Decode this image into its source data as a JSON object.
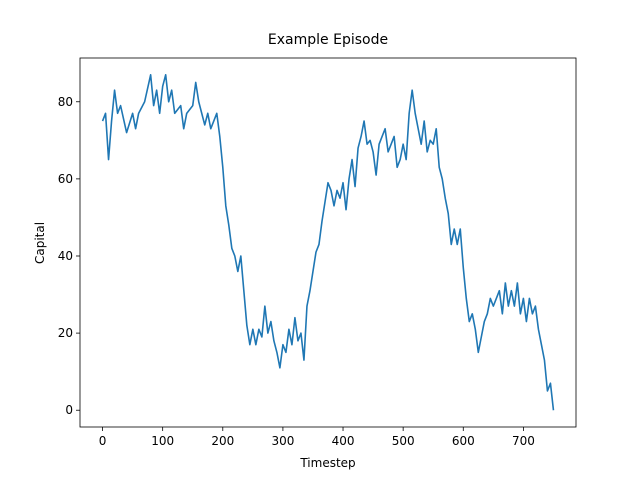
{
  "chart_data": {
    "type": "line",
    "title": "Example Episode",
    "x_label": "Timestep",
    "y_label": "Capital",
    "x": [
      0,
      5,
      10,
      15,
      20,
      25,
      30,
      40,
      50,
      55,
      60,
      70,
      80,
      85,
      90,
      95,
      100,
      105,
      110,
      115,
      120,
      130,
      135,
      140,
      150,
      155,
      160,
      170,
      175,
      180,
      190,
      195,
      200,
      205,
      210,
      215,
      220,
      225,
      230,
      235,
      240,
      245,
      250,
      255,
      260,
      265,
      270,
      275,
      280,
      285,
      290,
      295,
      300,
      305,
      310,
      315,
      320,
      325,
      330,
      335,
      340,
      345,
      350,
      355,
      360,
      365,
      370,
      375,
      380,
      385,
      390,
      395,
      400,
      405,
      410,
      415,
      420,
      425,
      430,
      435,
      440,
      445,
      450,
      455,
      460,
      465,
      470,
      475,
      480,
      485,
      490,
      495,
      500,
      505,
      510,
      515,
      520,
      525,
      530,
      535,
      540,
      545,
      550,
      555,
      560,
      565,
      570,
      575,
      580,
      585,
      590,
      595,
      600,
      605,
      610,
      615,
      620,
      625,
      630,
      635,
      640,
      645,
      650,
      655,
      660,
      665,
      670,
      675,
      680,
      685,
      690,
      695,
      700,
      705,
      710,
      715,
      720,
      725,
      730,
      735,
      740,
      745,
      750
    ],
    "series": [
      {
        "name": "Capital",
        "color": "#1f77b4",
        "values": [
          75,
          77,
          65,
          75,
          83,
          77,
          79,
          72,
          77,
          73,
          77,
          80,
          87,
          79,
          83,
          77,
          84,
          87,
          80,
          83,
          77,
          79,
          73,
          77,
          79,
          85,
          80,
          74,
          77,
          73,
          77,
          71,
          63,
          53,
          48,
          42,
          40,
          36,
          40,
          31,
          22,
          17,
          21,
          17,
          21,
          19,
          27,
          20,
          23,
          18,
          15,
          11,
          17,
          15,
          21,
          17,
          24,
          18,
          20,
          13,
          27,
          31,
          36,
          41,
          43,
          49,
          54,
          59,
          57,
          53,
          57,
          55,
          59,
          52,
          60,
          65,
          58,
          68,
          71,
          75,
          69,
          70,
          67,
          61,
          69,
          71,
          73,
          67,
          69,
          71,
          63,
          65,
          69,
          65,
          77,
          83,
          77,
          73,
          69,
          75,
          67,
          70,
          69,
          73,
          63,
          60,
          55,
          51,
          43,
          47,
          43,
          47,
          37,
          29,
          23,
          25,
          21,
          15,
          19,
          23,
          25,
          29,
          27,
          29,
          31,
          25,
          33,
          27,
          31,
          27,
          33,
          25,
          29,
          23,
          29,
          25,
          27,
          21,
          17,
          13,
          5,
          7,
          0
        ]
      }
    ],
    "xlim": [
      -37.5,
      787.5
    ],
    "xticks": [
      0,
      100,
      200,
      300,
      400,
      500,
      600,
      700
    ],
    "ylim": [
      -4.35,
      91.35
    ],
    "yticks": [
      0,
      20,
      40,
      60,
      80
    ],
    "grid": false
  }
}
